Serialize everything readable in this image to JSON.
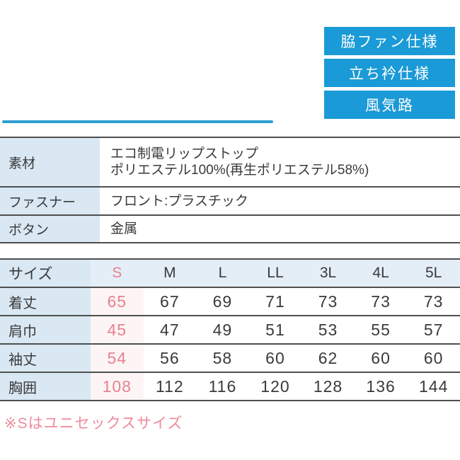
{
  "colors": {
    "badge_blue": "#1a9ad6",
    "accent_line_blue": "#2d9fd2",
    "label_cell_blue": "#d9e8f3",
    "header_row_blue": "#e4eef7",
    "s_column_pink_bg": "#fdf5f5",
    "s_value_pink": "#e8808f",
    "note_pink": "#ee8b99",
    "border_gray": "#4f4f4f",
    "text_dark": "#3a3a3a"
  },
  "badges": [
    {
      "label": "脇ファン仕様"
    },
    {
      "label": "立ち衿仕様"
    },
    {
      "label": "風気路"
    }
  ],
  "spec_table": {
    "rows": [
      {
        "label": "素材",
        "lines": [
          "エコ制電リップストップ",
          "ポリエステル100%(再生ポリエステル58%)"
        ]
      },
      {
        "label": "ファスナー",
        "lines": [
          "フロント:プラスチック"
        ]
      },
      {
        "label": "ボタン",
        "lines": [
          "金属"
        ]
      }
    ]
  },
  "size_table": {
    "header": [
      "サイズ",
      "S",
      "M",
      "L",
      "LL",
      "3L",
      "4L",
      "5L"
    ],
    "rows": [
      {
        "label": "着丈",
        "values": [
          "65",
          "67",
          "69",
          "71",
          "73",
          "73",
          "73"
        ]
      },
      {
        "label": "肩巾",
        "values": [
          "45",
          "47",
          "49",
          "51",
          "53",
          "55",
          "57"
        ]
      },
      {
        "label": "袖丈",
        "values": [
          "54",
          "56",
          "58",
          "60",
          "62",
          "60",
          "60"
        ]
      },
      {
        "label": "胸囲",
        "values": [
          "108",
          "112",
          "116",
          "120",
          "128",
          "136",
          "144"
        ]
      }
    ]
  },
  "note": "※Sはユニセックスサイズ"
}
